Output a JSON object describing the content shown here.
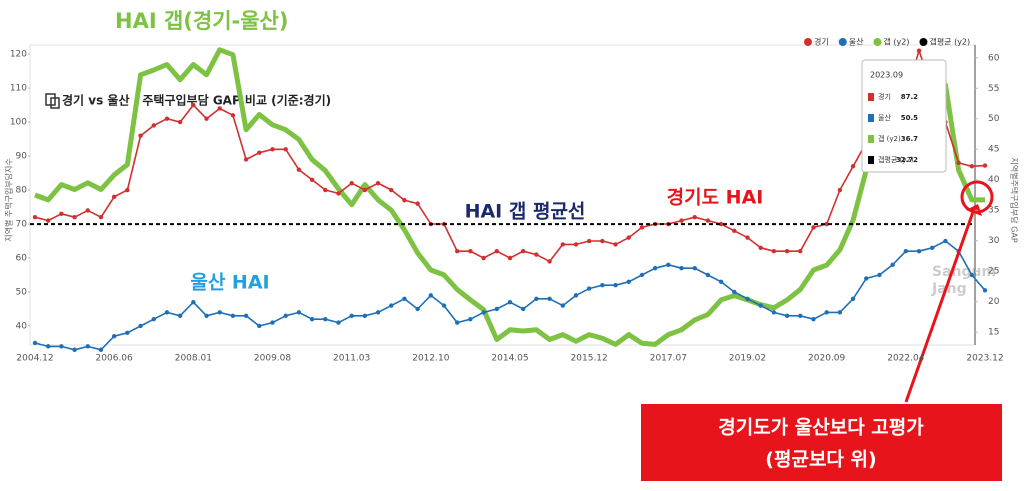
{
  "chart_data": {
    "type": "line",
    "headline": "HAI 갭(경기-울산)",
    "title": "경기 vs 울산 · 주택구입부담 GAP 비교 (기준:경기)",
    "ylabel": "지역별 주택구입부담지수",
    "y2label": "지역별주택구입부담 GAP",
    "categories": [
      "2004.12",
      null,
      null,
      null,
      null,
      null,
      "2006.06",
      null,
      null,
      null,
      null,
      null,
      "2008.01",
      null,
      null,
      null,
      null,
      null,
      "2009.08",
      null,
      null,
      null,
      null,
      null,
      "2011.03",
      null,
      null,
      null,
      null,
      null,
      "2012.10",
      null,
      null,
      null,
      null,
      null,
      "2014.05",
      null,
      null,
      null,
      null,
      null,
      "2015.12",
      null,
      null,
      null,
      null,
      null,
      "2017.07",
      null,
      null,
      null,
      null,
      null,
      "2019.02",
      null,
      null,
      null,
      null,
      null,
      "2020.09",
      null,
      null,
      null,
      null,
      null,
      "2022.04",
      null,
      null,
      null,
      null,
      null,
      "2023.12"
    ],
    "series": [
      {
        "name": "경기",
        "color": "#d32f2f",
        "values": [
          72,
          71,
          73,
          72,
          74,
          72,
          78,
          80,
          96,
          99,
          101,
          100,
          105,
          101,
          104,
          102,
          89,
          91,
          92,
          92,
          86,
          83,
          80,
          79,
          82,
          80,
          82,
          80,
          77,
          76,
          70,
          70,
          62,
          62,
          60,
          62,
          60,
          62,
          61,
          59,
          64,
          64,
          65,
          65,
          64,
          66,
          69,
          70,
          70,
          71,
          72,
          71,
          70,
          68,
          66,
          63,
          62,
          62,
          62,
          69,
          70,
          80,
          87,
          94,
          98,
          100,
          108,
          121,
          110,
          100,
          88,
          87,
          87.2
        ]
      },
      {
        "name": "울산",
        "color": "#1f6fb8",
        "values": [
          35,
          34,
          34,
          33,
          34,
          33,
          37,
          38,
          40,
          42,
          44,
          43,
          47,
          43,
          44,
          43,
          43,
          40,
          41,
          43,
          44,
          42,
          42,
          41,
          43,
          43,
          44,
          46,
          48,
          45,
          49,
          46,
          41,
          42,
          44,
          45,
          47,
          45,
          48,
          48,
          46,
          49,
          51,
          52,
          52,
          53,
          55,
          57,
          58,
          57,
          57,
          55,
          53,
          50,
          48,
          46,
          44,
          43,
          43,
          42,
          44,
          44,
          48,
          54,
          55,
          58,
          62,
          62,
          63,
          65,
          62,
          55,
          50.5
        ]
      },
      {
        "name": "갭 (y2)",
        "color": "#7dc242",
        "axis": "y2",
        "values": [
          37.5,
          36.7,
          39.2,
          38.4,
          39.5,
          38.4,
          40.8,
          42.5,
          57.2,
          58,
          58.9,
          56.4,
          58.9,
          57.2,
          61.3,
          60.5,
          48.2,
          50.7,
          49,
          48.2,
          46.6,
          43.3,
          41.5,
          38.5,
          35.9,
          39.2,
          36.7,
          35,
          31.8,
          28,
          25.2,
          24.4,
          22,
          20.3,
          18.7,
          13.8,
          15.4,
          15.2,
          15.4,
          13.8,
          14.6,
          13.5,
          14.6,
          14,
          13,
          14.6,
          13.2,
          13,
          14.6,
          15.4,
          17,
          17.9,
          20.3,
          21,
          20.3,
          19.5,
          19,
          20.3,
          22,
          25.2,
          26,
          28.5,
          33.4,
          41.6,
          48.2,
          53.1,
          54.8,
          54.8,
          53.1,
          55.6,
          41.6,
          36.7,
          36.7
        ]
      },
      {
        "name": "갭평균 (y2)",
        "color": "#000000",
        "axis": "y2",
        "value": 32.72
      }
    ],
    "ylim": [
      34.4,
      121.8
    ],
    "yticks": [
      40,
      50,
      60,
      70,
      80,
      90,
      100,
      110,
      120
    ],
    "y2lim": [
      12.9,
      61.6
    ],
    "y2ticks": [
      15,
      20,
      25,
      30,
      35,
      40,
      45,
      50,
      55,
      60
    ],
    "grid": false,
    "legend": "top-right",
    "tooltip": {
      "title": "2023.09",
      "values": [
        87.2,
        50.5,
        36.7,
        32.72
      ]
    },
    "annotations": [
      {
        "text": "HAI 갭 평균선",
        "color": "#1a2a6c"
      },
      {
        "text": "경기도 HAI",
        "color": "#e8141b"
      },
      {
        "text": "울산 HAI",
        "color": "#1fa0e0"
      }
    ],
    "callout": [
      "경기도가 울산보다 고평가",
      "(평균보다 위)"
    ],
    "watermark": [
      "Sangum",
      "Jang"
    ]
  }
}
